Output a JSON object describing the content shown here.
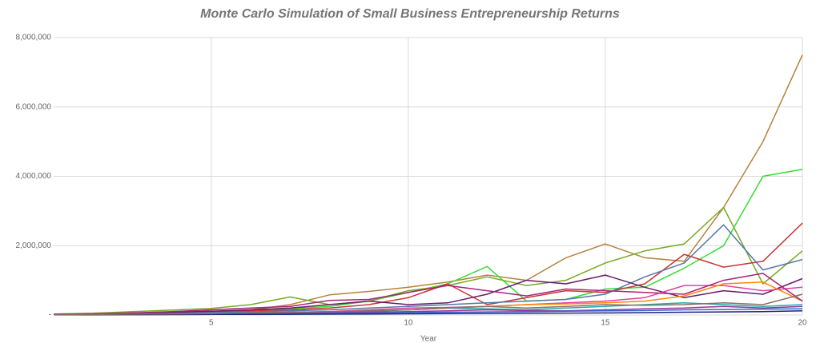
{
  "chart_data": {
    "type": "line",
    "title": "Monte Carlo Simulation of Small Business Entrepreneurship Returns",
    "x_label": "Year",
    "x": [
      1,
      2,
      3,
      4,
      5,
      6,
      7,
      8,
      9,
      10,
      11,
      12,
      13,
      14,
      15,
      16,
      17,
      18,
      19,
      20
    ],
    "xlim": [
      1,
      20
    ],
    "xticks": [
      5,
      10,
      15,
      20
    ],
    "ylim": [
      0,
      8000000
    ],
    "yticks": [
      {
        "value": 0,
        "label": "-"
      },
      {
        "value": 2000000,
        "label": "2,000,000"
      },
      {
        "value": 4000000,
        "label": "4,000,000"
      },
      {
        "value": 6000000,
        "label": "6,000,000"
      },
      {
        "value": 8000000,
        "label": "8,000,000"
      }
    ],
    "grid": true,
    "series": [
      {
        "color": "#b5813a",
        "values": [
          20000,
          30000,
          40000,
          60000,
          100000,
          150000,
          300000,
          580000,
          680000,
          800000,
          950000,
          1150000,
          1000000,
          1650000,
          2050000,
          1650000,
          1550000,
          3100000,
          5000000,
          7500000
        ]
      },
      {
        "color": "#33dd33",
        "values": [
          20000,
          40000,
          60000,
          80000,
          100000,
          130000,
          180000,
          250000,
          400000,
          650000,
          900000,
          1400000,
          400000,
          450000,
          750000,
          800000,
          1350000,
          2000000,
          4000000,
          4200000
        ]
      },
      {
        "color": "#77aa22",
        "values": [
          30000,
          50000,
          100000,
          140000,
          190000,
          300000,
          520000,
          300000,
          400000,
          700000,
          850000,
          1100000,
          850000,
          1000000,
          1500000,
          1850000,
          2050000,
          3100000,
          900000,
          1850000
        ]
      },
      {
        "color": "#cc3333",
        "values": [
          10000,
          20000,
          40000,
          60000,
          80000,
          120000,
          150000,
          200000,
          300000,
          500000,
          900000,
          300000,
          500000,
          700000,
          650000,
          900000,
          1750000,
          1380000,
          1550000,
          2650000
        ]
      },
      {
        "color": "#5577aa",
        "values": [
          20000,
          30000,
          40000,
          50000,
          70000,
          90000,
          120000,
          150000,
          200000,
          250000,
          300000,
          350000,
          400000,
          450000,
          600000,
          1100000,
          1500000,
          2600000,
          1300000,
          1600000
        ]
      },
      {
        "color": "#6a1b6a",
        "values": [
          20000,
          30000,
          50000,
          80000,
          110000,
          150000,
          200000,
          300000,
          400000,
          300000,
          350000,
          600000,
          1000000,
          900000,
          1150000,
          800000,
          500000,
          700000,
          600000,
          1050000
        ]
      },
      {
        "color": "#e040a0",
        "values": [
          10000,
          15000,
          20000,
          30000,
          40000,
          60000,
          80000,
          100000,
          150000,
          200000,
          220000,
          250000,
          300000,
          350000,
          400000,
          500000,
          850000,
          850000,
          700000,
          800000
        ]
      },
      {
        "color": "#ff8800",
        "values": [
          5000,
          10000,
          15000,
          20000,
          30000,
          40000,
          60000,
          80000,
          120000,
          150000,
          200000,
          250000,
          300000,
          320000,
          350000,
          400000,
          550000,
          900000,
          950000,
          400000
        ]
      },
      {
        "color": "#aa2277",
        "values": [
          20000,
          40000,
          60000,
          100000,
          150000,
          200000,
          250000,
          420000,
          450000,
          650000,
          850000,
          700000,
          550000,
          750000,
          700000,
          650000,
          600000,
          1000000,
          1200000,
          400000
        ]
      },
      {
        "color": "#22aaaa",
        "values": [
          10000,
          20000,
          30000,
          40000,
          50000,
          60000,
          80000,
          90000,
          100000,
          150000,
          200000,
          180000,
          150000,
          200000,
          250000,
          300000,
          350000,
          300000,
          250000,
          300000
        ]
      },
      {
        "color": "#993399",
        "values": [
          15000,
          20000,
          30000,
          35000,
          40000,
          50000,
          60000,
          70000,
          80000,
          100000,
          120000,
          150000,
          130000,
          120000,
          150000,
          180000,
          200000,
          250000,
          200000,
          250000
        ]
      },
      {
        "color": "#3366cc",
        "values": [
          5000,
          10000,
          15000,
          20000,
          25000,
          30000,
          40000,
          50000,
          60000,
          70000,
          80000,
          90000,
          100000,
          110000,
          120000,
          130000,
          150000,
          160000,
          170000,
          180000
        ]
      },
      {
        "color": "#1a237e",
        "values": [
          5000,
          8000,
          10000,
          12000,
          15000,
          18000,
          20000,
          25000,
          30000,
          35000,
          40000,
          45000,
          50000,
          55000,
          60000,
          70000,
          80000,
          90000,
          100000,
          120000
        ]
      },
      {
        "color": "#8d6e63",
        "values": [
          10000,
          15000,
          25000,
          30000,
          40000,
          60000,
          80000,
          100000,
          120000,
          150000,
          200000,
          250000,
          200000,
          250000,
          300000,
          280000,
          300000,
          350000,
          300000,
          600000
        ]
      }
    ]
  }
}
